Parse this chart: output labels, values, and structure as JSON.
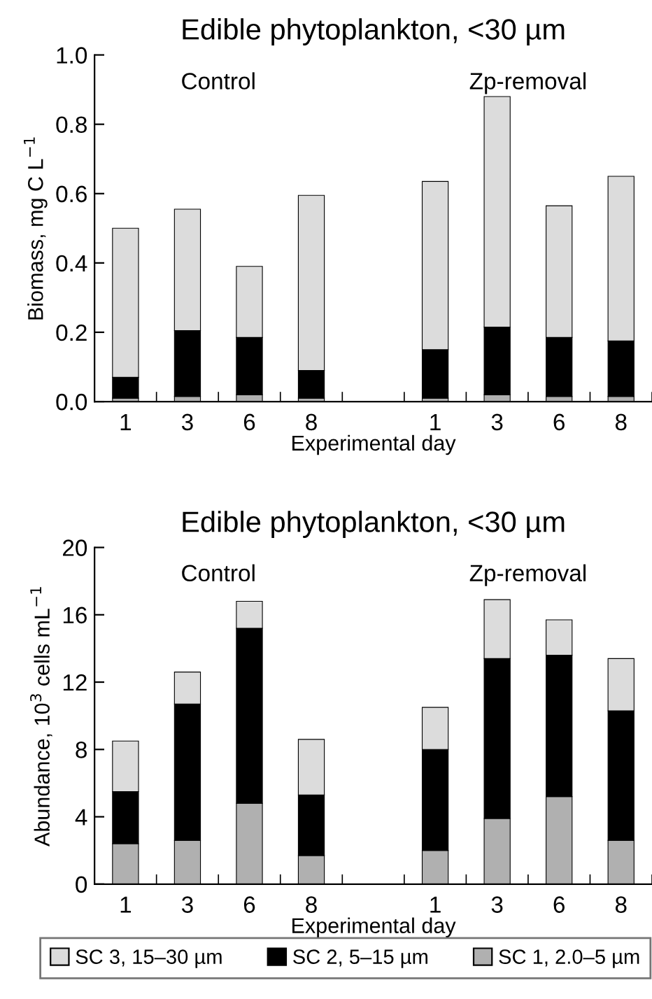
{
  "chart_data": [
    {
      "type": "bar",
      "stacked": true,
      "title": "Edible phytoplankton, <30 µm",
      "xlabel": "Experimental day",
      "ylabel": "Biomass, mg C L$^{−1}$",
      "categories": [
        "1",
        "3",
        "6",
        "8",
        null,
        "1",
        "3",
        "6",
        "8"
      ],
      "annotations": [
        "Control",
        "Zp-removal"
      ],
      "series": [
        {
          "color": "#b0b0b0",
          "values": [
            0.01,
            0.015,
            0.02,
            0.01,
            null,
            0.01,
            0.02,
            0.015,
            0.015
          ]
        },
        {
          "color": "#000000",
          "values": [
            0.06,
            0.19,
            0.165,
            0.08,
            null,
            0.14,
            0.195,
            0.17,
            0.16
          ]
        },
        {
          "color": "#dcdcdc",
          "values": [
            0.43,
            0.35,
            0.205,
            0.505,
            null,
            0.485,
            0.665,
            0.38,
            0.475
          ]
        }
      ],
      "ylim": [
        0,
        1.0
      ],
      "yticks": [
        {
          "value": 0,
          "label": "0.0"
        },
        {
          "value": 0.2,
          "label": "0.2"
        },
        {
          "value": 0.4,
          "label": "0.4"
        },
        {
          "value": 0.6,
          "label": "0.6"
        },
        {
          "value": 0.8,
          "label": "0.8"
        },
        {
          "value": 1.0,
          "label": "1.0"
        }
      ],
      "grid": false,
      "legend": false
    },
    {
      "type": "bar",
      "stacked": true,
      "title": "Edible phytoplankton, <30 µm",
      "xlabel": "Experimental day",
      "ylabel": "Abundance, 10$^{3}$ cells mL$^{−1}$",
      "categories": [
        "1",
        "3",
        "6",
        "8",
        null,
        "1",
        "3",
        "6",
        "8"
      ],
      "annotations": [
        "Control",
        "Zp-removal"
      ],
      "series": [
        {
          "name": "SC 1, 2.0–5 µm",
          "color": "#b0b0b0",
          "values": [
            2.4,
            2.6,
            4.8,
            1.7,
            null,
            2.0,
            3.9,
            5.2,
            2.6
          ]
        },
        {
          "name": "SC 2, 5–15 µm",
          "color": "#000000",
          "values": [
            3.1,
            8.1,
            10.4,
            3.6,
            null,
            6.0,
            9.5,
            8.4,
            7.7
          ]
        },
        {
          "name": "SC 3, 15–30 µm",
          "color": "#dcdcdc",
          "values": [
            3.0,
            1.9,
            1.6,
            3.3,
            null,
            2.5,
            3.5,
            2.1,
            3.1
          ]
        }
      ],
      "ylim": [
        0,
        20
      ],
      "yticks": [
        0,
        4,
        8,
        12,
        16,
        20
      ],
      "grid": false,
      "legend": "bottom"
    }
  ]
}
